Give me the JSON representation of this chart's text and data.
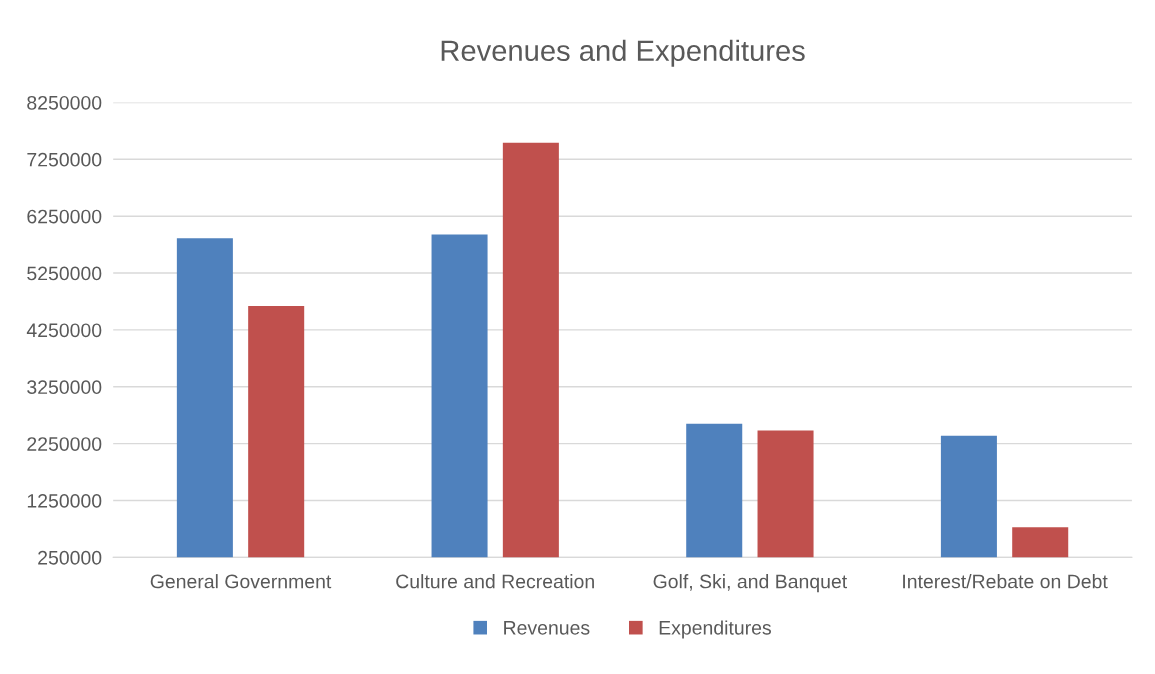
{
  "chart_data": {
    "type": "bar",
    "title": "Revenues and Expenditures",
    "categories": [
      "General Government",
      "Culture and Recreation",
      "Golf, Ski, and Banquet",
      "Interest/Rebate on Debt"
    ],
    "series": [
      {
        "name": "Revenues",
        "color": "#4f81bd",
        "values": [
          5860000,
          5930000,
          2600000,
          2390000
        ]
      },
      {
        "name": "Expenditures",
        "color": "#c0504d",
        "values": [
          4670000,
          7540000,
          2480000,
          780000
        ]
      }
    ],
    "ylim": [
      250000,
      8250000
    ],
    "yticks": [
      250000,
      1250000,
      2250000,
      3250000,
      4250000,
      5250000,
      6250000,
      7250000,
      8250000
    ],
    "grid": "y",
    "legend": "bottom"
  }
}
